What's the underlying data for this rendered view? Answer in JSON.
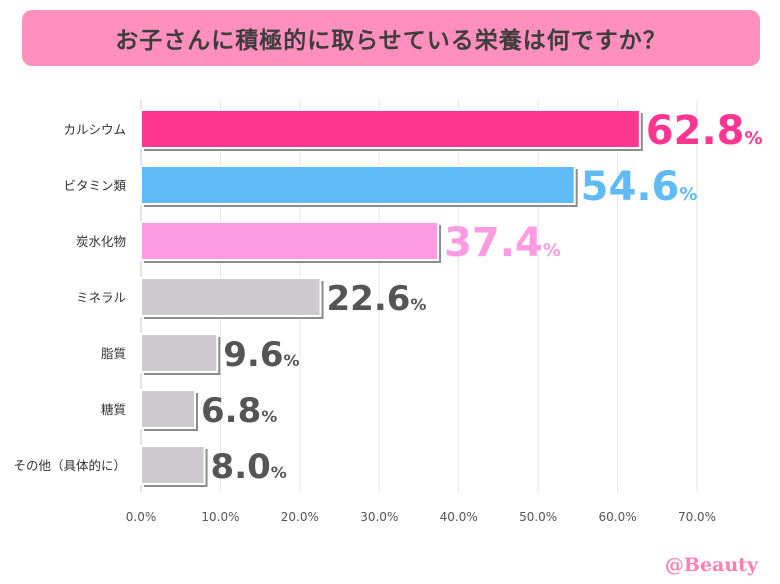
{
  "title": "お子さんに積極的に取らせている栄養は何ですか？",
  "watermark": "@Beauty",
  "chart_data": {
    "type": "bar",
    "orientation": "horizontal",
    "categories": [
      "カルシウム",
      "ビタミン類",
      "炭水化物",
      "ミネラル",
      "脂質",
      "糖質",
      "その他（具体的に）"
    ],
    "values": [
      62.8,
      54.6,
      37.4,
      22.6,
      9.6,
      6.8,
      8.0
    ],
    "value_labels": [
      "62.8",
      "54.6",
      "37.4",
      "22.6",
      "9.6",
      "6.8",
      "8.0"
    ],
    "value_unit": "%",
    "bar_colors": [
      "#ff3592",
      "#5fbbf5",
      "#ff9be2",
      "#cccacc",
      "#cccacc",
      "#cccacc",
      "#cccacc"
    ],
    "label_colors": [
      "#ff3592",
      "#5fbbf5",
      "#ff9be2",
      "#555555",
      "#555555",
      "#555555",
      "#555555"
    ],
    "xlim": [
      0,
      70
    ],
    "xticks": [
      0,
      10,
      20,
      30,
      40,
      50,
      60,
      70
    ],
    "xtick_labels": [
      "0.0%",
      "10.0%",
      "20.0%",
      "30.0%",
      "40.0%",
      "50.0%",
      "60.0%",
      "70.0%"
    ],
    "grid": true
  }
}
